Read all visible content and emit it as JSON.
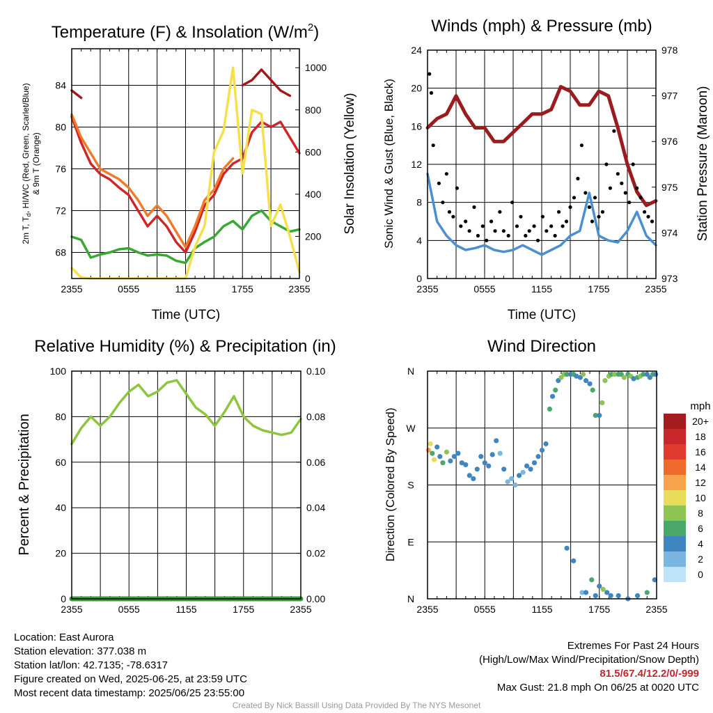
{
  "panels": {
    "temperature": {
      "title_main": "Temperature (F) & Insolation (W/m",
      "title_sup": "2",
      "title_end": ")",
      "xlabel": "Time (UTC)",
      "ylabel_left_line1": "2m T, T",
      "ylabel_left_sub": "d",
      "ylabel_left_line1_end": ", HI/WC (Red, Green, Scarlet/Blue)",
      "ylabel_left_line2": "& 9m T (Orange)",
      "ylabel_right": "Solar Insolation (Yellow)"
    },
    "winds": {
      "title": "Winds (mph) & Pressure (mb)",
      "xlabel": "Time (UTC)",
      "ylabel_left": "Sonic Wind & Gust (Blue, Black)",
      "ylabel_right": "Station Pressure (Maroon)"
    },
    "humidity": {
      "title": "Relative Humidity (%) & Precipitation (in)",
      "ylabel_left": "Percent & Precipitation"
    },
    "direction": {
      "title": "Wind Direction",
      "ylabel_left": "Direction (Colored By Speed)",
      "colorbar_unit": "mph",
      "colorbar_labels": [
        "20+",
        "18",
        "16",
        "14",
        "12",
        "10",
        "8",
        "6",
        "4",
        "2",
        "0"
      ],
      "colorbar_colors": [
        "#a51c1f",
        "#c8282c",
        "#e03b2e",
        "#f06a2e",
        "#f7a34a",
        "#e8dc5a",
        "#8dc454",
        "#4aa86a",
        "#3f86c0",
        "#7ab6e0",
        "#bfe3f6"
      ]
    }
  },
  "info": {
    "location": "Location: East Aurora",
    "elevation": "Station elevation: 377.038 m",
    "latlon": "Station lat/lon: 42.7135; -78.6317",
    "created": "Figure created on Wed, 2025-06-25, at 23:59 UTC",
    "recent": "Most recent data timestamp: 2025/06/25 23:55:00",
    "extremes_title": "Extremes For Past 24 Hours",
    "extremes_sub": "(High/Low/Max Wind/Precipitation/Snow Depth)",
    "extremes_values": "81.5/67.4/12.2/0/-999",
    "max_gust": "Max Gust: 21.8 mph On 06/25 at 0020 UTC"
  },
  "credit": "Created By Nick Bassill Using Data Provided By The NYS Mesonet",
  "chart_data": [
    {
      "type": "line",
      "title": "Temperature (F) & Insolation (W/m2)",
      "xlabel": "Time (UTC)",
      "ylabel": "2m T, Td, HI/WC (Red, Green, Scarlet/Blue) & 9m T (Orange)",
      "y2label": "Solar Insolation (Yellow)",
      "x_ticks": [
        "2355",
        "0555",
        "1155",
        "1755",
        "2355"
      ],
      "ylim": [
        65.5,
        87.5
      ],
      "y_ticks": [
        68,
        72,
        76,
        80,
        84
      ],
      "y2lim": [
        0,
        1090
      ],
      "y2_ticks": [
        0,
        200,
        400,
        600,
        800,
        1000
      ],
      "grid": true,
      "x": [
        0,
        1,
        2,
        3,
        4,
        5,
        6,
        7,
        8,
        9,
        10,
        11,
        12,
        13,
        14,
        15,
        16,
        17,
        18,
        19,
        20,
        21,
        22,
        23,
        24
      ],
      "series": [
        {
          "color": "#d02528",
          "axis": "left",
          "values": [
            81.0,
            78.5,
            76.5,
            75.5,
            75.0,
            74.2,
            73.5,
            72.0,
            70.5,
            71.5,
            70.5,
            69.0,
            68.0,
            70.0,
            72.5,
            73.5,
            75.5,
            76.5,
            77.0,
            79.5,
            80.5,
            80.0,
            80.5,
            79.0,
            77.5
          ]
        },
        {
          "color": "#f07a2a",
          "axis": "left",
          "values": [
            81.2,
            79.0,
            77.5,
            76.0,
            75.5,
            75.0,
            74.2,
            73.0,
            71.5,
            72.5,
            71.5,
            70.0,
            68.5,
            70.5,
            73.0,
            74.0,
            76.0,
            77.0,
            null,
            null,
            null,
            null,
            null,
            null,
            null
          ]
        },
        {
          "color": "#38a832",
          "axis": "left",
          "values": [
            69.5,
            69.2,
            67.5,
            67.8,
            68.0,
            68.3,
            68.4,
            68.0,
            67.7,
            67.8,
            67.7,
            67.2,
            67.0,
            68.4,
            69.0,
            69.5,
            70.5,
            71.0,
            70.2,
            71.5,
            72.0,
            71.0,
            70.5,
            70.0,
            70.2
          ]
        },
        {
          "color": "#a01a1c",
          "axis": "left",
          "values": [
            83.5,
            82.8,
            null,
            null,
            null,
            null,
            null,
            null,
            null,
            null,
            null,
            null,
            null,
            null,
            null,
            null,
            null,
            null,
            84.0,
            84.5,
            85.5,
            84.5,
            83.5,
            83.0,
            null
          ]
        },
        {
          "color": "#f5e04c",
          "axis": "right",
          "values": [
            50,
            5,
            0,
            0,
            0,
            0,
            0,
            0,
            0,
            0,
            0,
            0,
            0,
            150,
            250,
            600,
            700,
            1000,
            500,
            800,
            780,
            250,
            350,
            200,
            30
          ]
        }
      ]
    },
    {
      "type": "line",
      "title": "Winds (mph) & Pressure (mb)",
      "xlabel": "Time (UTC)",
      "ylabel": "Sonic Wind & Gust (Blue, Black)",
      "y2label": "Station Pressure (Maroon)",
      "x_ticks": [
        "2355",
        "0555",
        "1155",
        "1755",
        "2355"
      ],
      "ylim": [
        0,
        24
      ],
      "y_ticks": [
        0,
        4,
        8,
        12,
        16,
        20,
        24
      ],
      "y2lim": [
        973,
        978
      ],
      "y2_ticks": [
        973,
        974,
        975,
        976,
        977,
        978
      ],
      "grid": true,
      "x": [
        0,
        1,
        2,
        3,
        4,
        5,
        6,
        7,
        8,
        9,
        10,
        11,
        12,
        13,
        14,
        15,
        16,
        17,
        18,
        19,
        20,
        21,
        22,
        23,
        24
      ],
      "series": [
        {
          "color": "#4a8fd0",
          "axis": "left",
          "values": [
            11.0,
            6.0,
            4.5,
            3.5,
            3.0,
            3.2,
            3.5,
            3.0,
            2.8,
            3.0,
            3.5,
            3.0,
            2.5,
            3.0,
            3.5,
            4.5,
            5.0,
            9.0,
            4.5,
            4.0,
            3.8,
            5.0,
            7.0,
            4.5,
            3.5
          ]
        },
        {
          "color": "#9b1c1f",
          "axis": "right",
          "values": [
            976.3,
            976.5,
            976.6,
            977.0,
            976.6,
            976.3,
            976.3,
            976.0,
            976.0,
            976.2,
            976.4,
            976.6,
            976.6,
            976.7,
            977.2,
            977.1,
            976.8,
            976.8,
            977.1,
            977.0,
            976.3,
            975.5,
            974.9,
            974.6,
            974.7
          ]
        }
      ],
      "gust_points": {
        "color": "#000000",
        "x": [
          0.2,
          0.4,
          0.6,
          1.2,
          1.6,
          2.0,
          2.3,
          2.7,
          3.1,
          3.5,
          4.0,
          4.4,
          4.9,
          5.3,
          5.8,
          6.2,
          6.7,
          7.1,
          7.6,
          8.0,
          8.5,
          8.9,
          9.4,
          9.8,
          10.3,
          10.7,
          11.2,
          11.6,
          12.1,
          12.5,
          13.0,
          13.4,
          13.8,
          14.2,
          14.6,
          15.0,
          15.4,
          15.8,
          16.2,
          16.6,
          17.0,
          17.3,
          17.6,
          18.0,
          18.4,
          18.8,
          19.2,
          19.6,
          20.0,
          20.4,
          20.8,
          21.2,
          21.6,
          22.0,
          22.4,
          22.8,
          23.2,
          23.6
        ],
        "values": [
          21.5,
          19.5,
          14.0,
          10.0,
          8.0,
          11.0,
          7.0,
          6.5,
          9.5,
          5.5,
          6.0,
          5.0,
          7.5,
          4.5,
          5.5,
          4.0,
          6.0,
          5.0,
          7.0,
          5.0,
          4.5,
          8.0,
          5.5,
          6.5,
          4.5,
          5.0,
          5.5,
          4.0,
          6.5,
          5.0,
          5.5,
          4.5,
          7.0,
          5.5,
          6.0,
          7.5,
          8.5,
          10.5,
          14.0,
          9.0,
          7.5,
          6.0,
          8.5,
          6.5,
          7.0,
          12.0,
          9.5,
          15.5,
          11.0,
          10.0,
          9.0,
          8.0,
          12.0,
          9.5,
          8.5,
          7.0,
          6.5,
          6.0
        ]
      }
    },
    {
      "type": "line",
      "title": "Relative Humidity (%) & Precipitation (in)",
      "ylabel": "Percent & Precipitation",
      "x_ticks": [
        "2355",
        "0555",
        "1155",
        "1755",
        "2355"
      ],
      "ylim": [
        0,
        100
      ],
      "y_ticks": [
        0,
        20,
        40,
        60,
        80,
        100
      ],
      "y2lim": [
        0,
        0.1
      ],
      "y2_ticks": [
        "0.00",
        "0.02",
        "0.04",
        "0.06",
        "0.08",
        "0.10"
      ],
      "grid": true,
      "x": [
        0,
        1,
        2,
        3,
        4,
        5,
        6,
        7,
        8,
        9,
        10,
        11,
        12,
        13,
        14,
        15,
        16,
        17,
        18,
        19,
        20,
        21,
        22,
        23,
        24
      ],
      "series": [
        {
          "color": "#8cc63f",
          "axis": "left",
          "values": [
            68,
            75,
            80,
            76,
            80,
            86,
            91,
            94,
            89,
            91,
            95,
            96,
            90,
            84,
            81,
            76,
            82,
            89,
            80,
            76,
            74,
            73,
            72,
            73,
            79
          ]
        },
        {
          "color": "#3a9a3a",
          "axis": "right",
          "values": [
            0,
            0,
            0,
            0,
            0,
            0,
            0,
            0,
            0,
            0,
            0,
            0,
            0,
            0,
            0,
            0,
            0,
            0,
            0,
            0,
            0,
            0,
            0,
            0,
            0
          ]
        }
      ]
    },
    {
      "type": "scatter",
      "title": "Wind Direction",
      "ylabel": "Direction (Colored By Speed)",
      "x_ticks": [
        "2355",
        "0555",
        "1155",
        "1755",
        "2355"
      ],
      "y_ticks": [
        "N",
        "E",
        "S",
        "W",
        "N"
      ],
      "ylim": [
        0,
        360
      ],
      "colorbar_label": "mph",
      "grid": true,
      "x": [
        0.1,
        0.3,
        0.5,
        0.7,
        1.0,
        1.3,
        1.6,
        2.0,
        2.4,
        2.8,
        3.2,
        3.6,
        4.0,
        4.4,
        4.8,
        5.2,
        5.6,
        6.0,
        6.4,
        6.8,
        7.2,
        7.6,
        8.0,
        8.4,
        8.8,
        9.2,
        9.6,
        10.0,
        10.4,
        10.8,
        11.2,
        11.6,
        12.0,
        12.4,
        12.8,
        13.1,
        13.4,
        13.7,
        14.0,
        14.3,
        14.6,
        15.0,
        15.3,
        15.6,
        16.0,
        16.3,
        16.6,
        17.0,
        17.3,
        17.6,
        18.0,
        18.3,
        18.6,
        19.0,
        19.3,
        19.6,
        20.0,
        20.3,
        20.6,
        21.0,
        21.3,
        21.6,
        22.0,
        22.3,
        22.6,
        23.0,
        23.3,
        23.6,
        23.9,
        14.6,
        15.3,
        16.2,
        16.6,
        17.2,
        17.6,
        18.0,
        18.4,
        18.8,
        19.2,
        20.0,
        21.0,
        22.0,
        23.0,
        23.8
      ],
      "values": [
        235,
        245,
        230,
        220,
        240,
        225,
        215,
        232,
        218,
        225,
        230,
        215,
        212,
        195,
        190,
        205,
        225,
        215,
        210,
        228,
        250,
        230,
        205,
        185,
        190,
        180,
        195,
        200,
        210,
        205,
        215,
        225,
        235,
        245,
        300,
        320,
        330,
        345,
        350,
        355,
        355,
        355,
        355,
        352,
        350,
        355,
        345,
        340,
        330,
        290,
        290,
        310,
        345,
        352,
        355,
        355,
        355,
        355,
        350,
        355,
        352,
        348,
        350,
        352,
        355,
        355,
        350,
        355,
        355,
        80,
        60,
        10,
        10,
        30,
        5,
        20,
        15,
        10,
        5,
        5,
        0,
        5,
        10,
        30
      ],
      "speeds": [
        12,
        10,
        6,
        9,
        3,
        4,
        5,
        8,
        3,
        4,
        3,
        4,
        4,
        3,
        4,
        3,
        4,
        3,
        4,
        3,
        3,
        2,
        3,
        1,
        2,
        2,
        3,
        2,
        3,
        3,
        4,
        4,
        3,
        4,
        5,
        3,
        6,
        4,
        7,
        7,
        6,
        3,
        5,
        4,
        4,
        7,
        3,
        4,
        6,
        6,
        4,
        7,
        7,
        8,
        6,
        7,
        6,
        5,
        7,
        6,
        7,
        4,
        6,
        7,
        5,
        3,
        4,
        6,
        4,
        3,
        3,
        2,
        3,
        6,
        4,
        3,
        8,
        4,
        3,
        4,
        4,
        3,
        5,
        3
      ]
    }
  ]
}
